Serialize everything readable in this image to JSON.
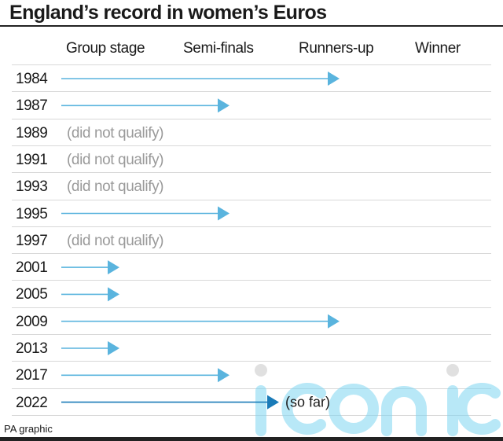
{
  "chart_data": {
    "type": "bar",
    "title": "England’s record in women’s Euros",
    "stages": [
      "Group stage",
      "Semi-finals",
      "Runners-up",
      "Winner"
    ],
    "rows": [
      {
        "year": "1984",
        "stage": 3
      },
      {
        "year": "1987",
        "stage": 2
      },
      {
        "year": "1989",
        "stage": 0,
        "note": "(did not qualify)"
      },
      {
        "year": "1991",
        "stage": 0,
        "note": "(did not qualify)"
      },
      {
        "year": "1993",
        "stage": 0,
        "note": "(did not qualify)"
      },
      {
        "year": "1995",
        "stage": 2
      },
      {
        "year": "1997",
        "stage": 0,
        "note": "(did not qualify)"
      },
      {
        "year": "2001",
        "stage": 1
      },
      {
        "year": "2005",
        "stage": 1
      },
      {
        "year": "2009",
        "stage": 3
      },
      {
        "year": "2013",
        "stage": 1
      },
      {
        "year": "2017",
        "stage": 2
      },
      {
        "year": "2022",
        "stage": 2.45,
        "note": "(so far)",
        "current": true
      }
    ],
    "colors": {
      "arrow": "#5ab4de",
      "current": "#1a7bb8"
    }
  },
  "footer": "PA graphic",
  "watermark": "iconic"
}
